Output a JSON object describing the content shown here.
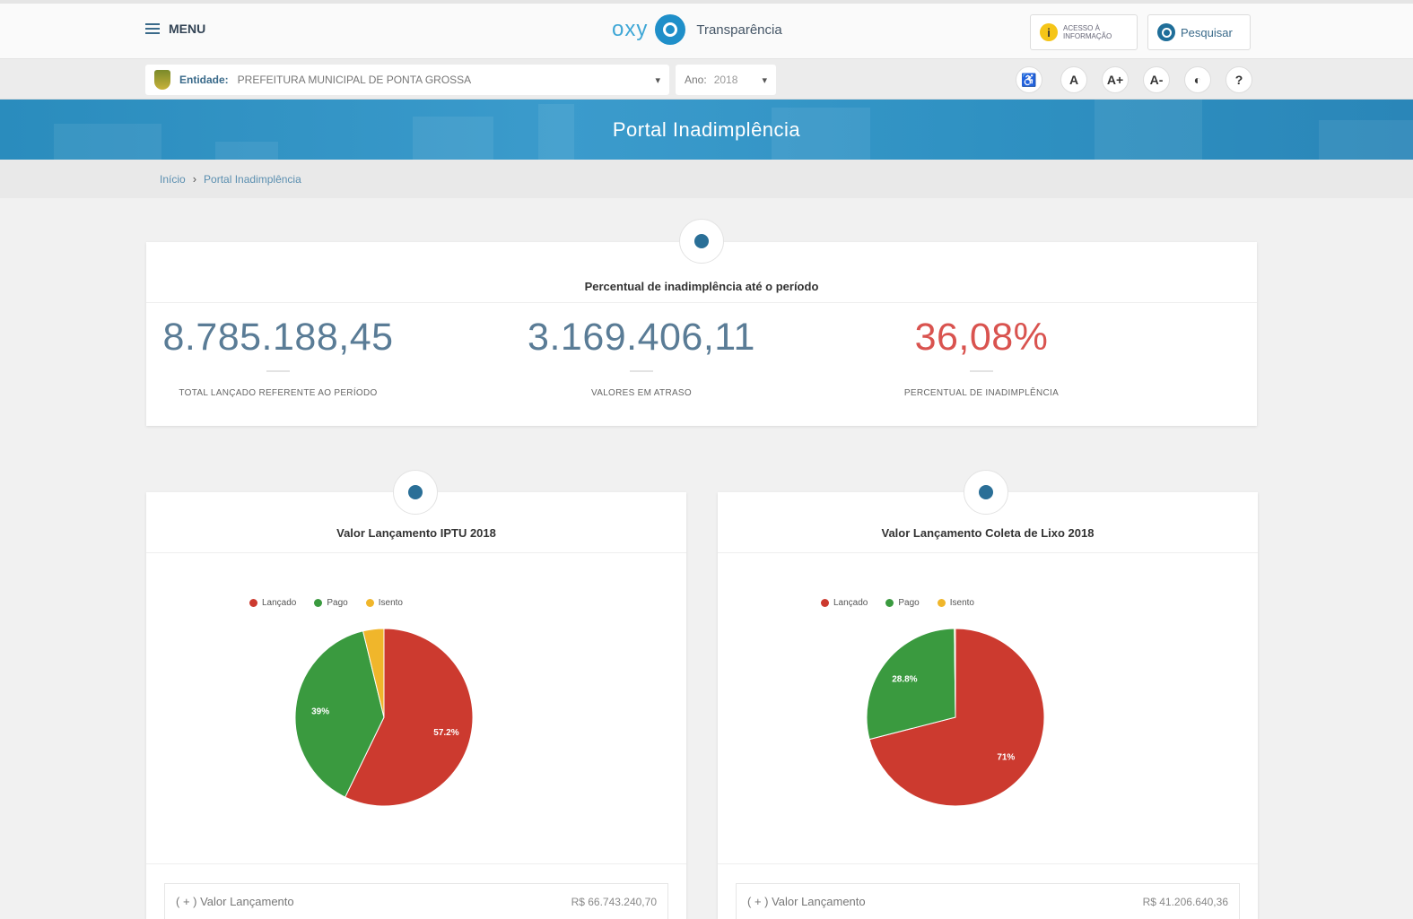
{
  "header": {
    "menu_label": "MENU",
    "brand_logo": "oxy",
    "brand_name": "Transparência",
    "acesso_label": "ACESSO À INFORMAÇÃO",
    "search_label": "Pesquisar"
  },
  "entity_bar": {
    "entity_label": "Entidade:",
    "entity_value": "PREFEITURA MUNICIPAL DE PONTA GROSSA",
    "year_label": "Ano:",
    "year_value": "2018",
    "tools": {
      "font_normal": "A",
      "font_increase": "A+",
      "font_decrease": "A-",
      "help": "?"
    }
  },
  "banner": {
    "title": "Portal Inadimplência"
  },
  "breadcrumb": {
    "home": "Início",
    "current": "Portal Inadimplência"
  },
  "summary": {
    "title": "Percentual de inadimplência até o período",
    "stats": [
      {
        "value": "8.785.188,45",
        "label": "TOTAL LANÇADO REFERENTE AO PERÍODO"
      },
      {
        "value": "3.169.406,11",
        "label": "VALORES EM ATRASO"
      },
      {
        "value": "36,08%",
        "label": "PERCENTUAL DE INADIMPLÊNCIA"
      }
    ]
  },
  "colors": {
    "lancado": "#cc3a2f",
    "pago": "#3a9a3f",
    "isento": "#f0b62b",
    "accent": "#2a8cbd"
  },
  "cards": [
    {
      "title": "Valor Lançamento IPTU 2018",
      "legend": [
        "Lançado",
        "Pago",
        "Isento"
      ],
      "foot_label": "( + ) Valor Lançamento",
      "foot_value": "R$ 66.743.240,70"
    },
    {
      "title": "Valor Lançamento Coleta de Lixo 2018",
      "legend": [
        "Lançado",
        "Pago",
        "Isento"
      ],
      "foot_label": "( + ) Valor Lançamento",
      "foot_value": "R$ 41.206.640,36"
    }
  ],
  "chart_data": [
    {
      "type": "pie",
      "title": "Valor Lançamento IPTU 2018",
      "categories": [
        "Lançado",
        "Pago",
        "Isento"
      ],
      "values": [
        57.2,
        39,
        3.8
      ],
      "data_labels": [
        "57.2%",
        "39%",
        ""
      ],
      "legend_position": "top"
    },
    {
      "type": "pie",
      "title": "Valor Lançamento Coleta de Lixo 2018",
      "categories": [
        "Lançado",
        "Pago",
        "Isento"
      ],
      "values": [
        71,
        28.8,
        0.2
      ],
      "data_labels": [
        "71%",
        "28.8%",
        ""
      ],
      "legend_position": "top"
    }
  ]
}
